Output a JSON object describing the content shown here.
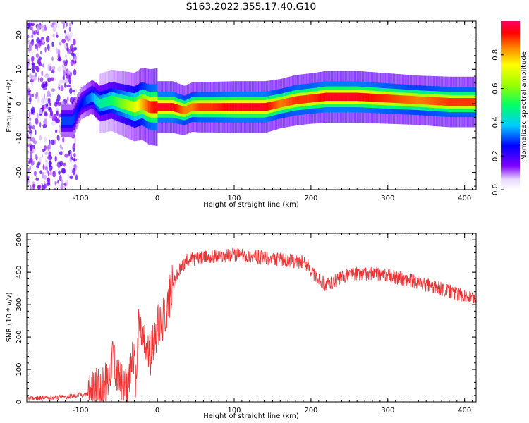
{
  "title": "S163.2022.355.17.40.G10",
  "chart_data": [
    {
      "type": "heatmap",
      "xlabel": "Height of straight line (km)",
      "ylabel": "Frequency (Hz)",
      "xlim": [
        -170,
        415
      ],
      "ylim": [
        -25,
        24
      ],
      "xticks": [
        -100,
        0,
        100,
        200,
        300,
        400
      ],
      "yticks": [
        -20,
        -10,
        0,
        10,
        20
      ],
      "colorbar": {
        "label": "Normalized spectral amplitude",
        "range": [
          0,
          1
        ],
        "ticks": [
          0.0,
          0.2,
          0.4,
          0.6,
          0.8
        ]
      },
      "ridge": {
        "x": [
          -125,
          -110,
          -100,
          -85,
          -75,
          -60,
          -45,
          -30,
          -20,
          -10,
          0,
          20,
          35,
          45,
          55,
          70,
          100,
          140,
          160,
          180,
          200,
          220,
          260,
          300,
          340,
          380,
          415
        ],
        "freq": [
          -5,
          -5,
          0,
          2,
          0,
          1,
          0,
          -1,
          0,
          -1,
          -1,
          -1,
          -2,
          -1,
          -1,
          -1,
          -1,
          -1,
          0,
          1,
          1.5,
          2,
          2,
          1.5,
          1,
          0.5,
          0.5
        ],
        "amplitude": [
          0.3,
          0.3,
          0.25,
          0.35,
          0.45,
          0.5,
          0.6,
          0.7,
          0.8,
          0.9,
          0.95,
          0.95,
          0.85,
          0.85,
          0.9,
          0.9,
          0.95,
          0.95,
          0.85,
          0.9,
          0.9,
          0.95,
          0.95,
          0.9,
          0.85,
          0.9,
          0.9
        ]
      }
    },
    {
      "type": "line",
      "xlabel": "Height of straight line (km)",
      "ylabel": "SNR (10 * v/v)",
      "xlim": [
        -170,
        415
      ],
      "ylim": [
        0,
        520
      ],
      "xticks": [
        -100,
        0,
        100,
        200,
        300,
        400
      ],
      "yticks": [
        0,
        100,
        200,
        300,
        400,
        500
      ],
      "color": "#ee3333",
      "series": [
        {
          "x": [
            -170,
            -120,
            -90,
            -75,
            -65,
            -58,
            -52,
            -45,
            -38,
            -32,
            -28,
            -24,
            -20,
            -15,
            -10,
            -5,
            0,
            5,
            10,
            20,
            30,
            40,
            60,
            80,
            100,
            120,
            150,
            180,
            195,
            205,
            220,
            250,
            280,
            300,
            330,
            360,
            390,
            415
          ],
          "y": [
            10,
            15,
            25,
            40,
            60,
            150,
            80,
            40,
            30,
            160,
            60,
            250,
            200,
            170,
            140,
            200,
            230,
            240,
            270,
            360,
            410,
            440,
            445,
            450,
            455,
            450,
            440,
            435,
            425,
            390,
            360,
            395,
            395,
            390,
            375,
            355,
            335,
            315
          ]
        }
      ]
    }
  ]
}
